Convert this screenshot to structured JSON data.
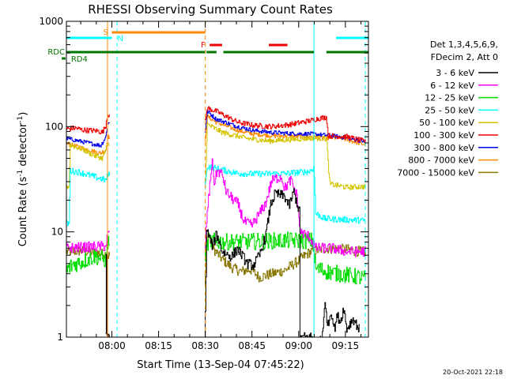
{
  "chart_data": {
    "type": "line",
    "title": "RHESSI Observing Summary Count Rates",
    "xlabel": "Start Time (13-Sep-04 07:45:22)",
    "ylabel": "Count Rate (s⁻¹ detector⁻¹)",
    "ylabel_main": "Count Rate (s",
    "ylabel_sup1": "-1",
    "ylabel_mid": " detector",
    "ylabel_sup2": "-1",
    "ylabel_end": ")",
    "yscale": "log",
    "ylim": [
      1,
      1000
    ],
    "xlim_minutes": [
      0,
      97
    ],
    "x_ticks": [
      {
        "label": "08:00",
        "minutes": 14.6
      },
      {
        "label": "08:15",
        "minutes": 29.6
      },
      {
        "label": "08:30",
        "minutes": 44.6
      },
      {
        "label": "08:45",
        "minutes": 59.6
      },
      {
        "label": "09:00",
        "minutes": 74.6
      },
      {
        "label": "09:15",
        "minutes": 89.6
      }
    ],
    "y_ticks": [
      {
        "label": "1",
        "value": 1
      },
      {
        "label": "10",
        "value": 10
      },
      {
        "label": "100",
        "value": 100
      },
      {
        "label": "1000",
        "value": 1000
      }
    ],
    "legend": {
      "header1": "Det 1,3,4,5,6,9,",
      "header2": "FDecim 2, Att 0",
      "entries": [
        {
          "label": "3 - 6 keV",
          "color": "#000000"
        },
        {
          "label": "6 - 12 keV",
          "color": "#ff00ff"
        },
        {
          "label": "12 - 25 keV",
          "color": "#00dd00"
        },
        {
          "label": "25 - 50 keV",
          "color": "#00ffff"
        },
        {
          "label": "50 - 100 keV",
          "color": "#d4c400"
        },
        {
          "label": "100 - 300 keV",
          "color": "#ee0000"
        },
        {
          "label": "300 - 800 keV",
          "color": "#0000ee"
        },
        {
          "label": "800 - 7000 keV",
          "color": "#ff8800"
        },
        {
          "label": "7000 - 15000 keV",
          "color": "#887700"
        }
      ]
    },
    "flags": {
      "S": {
        "label": "S",
        "color": "#ff8800",
        "segments": [
          [
            14.6,
            44.6
          ]
        ]
      },
      "N": {
        "label": "N",
        "color": "#00ffff",
        "segments": [
          [
            0,
            14.6
          ],
          [
            86.6,
            97
          ]
        ]
      },
      "F": {
        "label": "F",
        "color": "#ee0000",
        "segments": [
          [
            46,
            50
          ],
          [
            65,
            71
          ]
        ]
      },
      "RDC": {
        "label": "RDC",
        "color": "#007700",
        "segments": [
          [
            0,
            44.5
          ],
          [
            45,
            48.2
          ],
          [
            50.4,
            79.5
          ],
          [
            83.5,
            97
          ]
        ]
      },
      "RD4": {
        "label": "RD4",
        "color": "#007700",
        "segments": [
          [
            -1.5,
            -0.3
          ]
        ]
      }
    },
    "event_lines": [
      {
        "minutes": 13.2,
        "color": "#ff8800",
        "style": "solid"
      },
      {
        "minutes": 16.3,
        "color": "#00ffff",
        "style": "dashed"
      },
      {
        "minutes": 44.6,
        "color": "#ff8800",
        "style": "dashed"
      },
      {
        "minutes": 79.5,
        "color": "#00ffff",
        "style": "solid"
      },
      {
        "minutes": 96.0,
        "color": "#00ffff",
        "style": "dashed"
      }
    ],
    "series": [
      {
        "name": "3 - 6 keV",
        "color": "#000000",
        "noise": 0.05,
        "gaps": [
          [
            13.8,
            44.4
          ],
          [
            79.2,
            81.4
          ]
        ],
        "points": [
          [
            12.6,
            1
          ],
          [
            12.8,
            6
          ],
          [
            13.0,
            1
          ],
          [
            44.5,
            1
          ],
          [
            45.0,
            10.5
          ],
          [
            47,
            7.2
          ],
          [
            48.2,
            9.6
          ],
          [
            50,
            6.5
          ],
          [
            53,
            5.8
          ],
          [
            55,
            6.9
          ],
          [
            58,
            5.0
          ],
          [
            60,
            4.8
          ],
          [
            62,
            6.0
          ],
          [
            64,
            9.3
          ],
          [
            65.5,
            18
          ],
          [
            67,
            23
          ],
          [
            70,
            21.8
          ],
          [
            71.5,
            17.7
          ],
          [
            73,
            24
          ],
          [
            74.8,
            15.5
          ],
          [
            75,
            1
          ],
          [
            82,
            1
          ],
          [
            83,
            2
          ],
          [
            84,
            1.3
          ],
          [
            85,
            1.8
          ],
          [
            86,
            1.2
          ],
          [
            87,
            1.6
          ],
          [
            88,
            1.4
          ],
          [
            89,
            1.9
          ],
          [
            90,
            1.2
          ],
          [
            92,
            1.5
          ],
          [
            94,
            1.2
          ]
        ]
      },
      {
        "name": "6 - 12 keV",
        "color": "#ff00ff",
        "noise": 0.05,
        "gaps": [
          [
            13.8,
            44.4
          ]
        ],
        "points": [
          [
            0,
            7.0
          ],
          [
            12.0,
            7.3
          ],
          [
            12.6,
            7.3
          ],
          [
            13.2,
            9.5
          ],
          [
            44.5,
            7
          ],
          [
            45,
            13
          ],
          [
            46.7,
            47
          ],
          [
            47.5,
            28.5
          ],
          [
            48.3,
            38
          ],
          [
            50,
            35
          ],
          [
            51.3,
            24
          ],
          [
            53,
            21
          ],
          [
            55,
            18.5
          ],
          [
            57,
            12.5
          ],
          [
            59.5,
            11.5
          ],
          [
            62,
            15
          ],
          [
            64,
            18.8
          ],
          [
            65.8,
            30.2
          ],
          [
            67,
            32
          ],
          [
            69,
            33.5
          ],
          [
            70,
            25.8
          ],
          [
            72,
            31
          ],
          [
            74,
            22
          ],
          [
            75,
            10
          ],
          [
            78,
            9
          ],
          [
            80,
            7
          ],
          [
            85,
            7
          ],
          [
            90,
            6.5
          ],
          [
            96,
            6.5
          ]
        ]
      },
      {
        "name": "12 - 25 keV",
        "color": "#00dd00",
        "noise": 0.08,
        "gaps": [
          [
            13.8,
            44.4
          ]
        ],
        "points": [
          [
            0,
            4.3
          ],
          [
            2,
            4.9
          ],
          [
            5,
            5.2
          ],
          [
            9,
            5.9
          ],
          [
            12.6,
            5.4
          ],
          [
            13.2,
            8
          ],
          [
            44.5,
            6
          ],
          [
            45.5,
            8.2
          ],
          [
            50,
            8.0
          ],
          [
            60,
            8.1
          ],
          [
            70,
            8.3
          ],
          [
            79,
            8.2
          ],
          [
            80,
            4.5
          ],
          [
            85,
            4.1
          ],
          [
            90,
            3.9
          ],
          [
            96,
            3.6
          ]
        ]
      },
      {
        "name": "25 - 50 keV",
        "color": "#00ffff",
        "noise": 0.03,
        "gaps": [
          [
            13.8,
            44.4
          ]
        ],
        "points": [
          [
            0,
            12
          ],
          [
            0.8,
            12
          ],
          [
            1.2,
            38
          ],
          [
            4,
            37
          ],
          [
            8,
            34
          ],
          [
            11,
            32
          ],
          [
            12.6,
            31
          ],
          [
            13.2,
            35
          ],
          [
            44.5,
            27.5
          ],
          [
            45.2,
            42
          ],
          [
            48,
            40
          ],
          [
            55,
            36
          ],
          [
            62,
            35.5
          ],
          [
            70,
            35.8
          ],
          [
            78,
            37.5
          ],
          [
            79.5,
            40.8
          ],
          [
            80,
            15
          ],
          [
            83,
            13.3
          ],
          [
            96,
            12.8
          ]
        ]
      },
      {
        "name": "50 - 100 keV",
        "color": "#d4c400",
        "noise": 0.025,
        "gaps": [
          [
            13.8,
            44.4
          ]
        ],
        "points": [
          [
            0,
            27
          ],
          [
            0.8,
            27
          ],
          [
            1.2,
            67
          ],
          [
            5,
            61
          ],
          [
            9,
            53
          ],
          [
            11.5,
            50
          ],
          [
            12.6,
            60
          ],
          [
            13.2,
            68
          ],
          [
            44.5,
            27
          ],
          [
            45.2,
            105
          ],
          [
            50,
            88
          ],
          [
            58,
            77
          ],
          [
            65,
            73
          ],
          [
            72,
            75.5
          ],
          [
            79,
            78
          ],
          [
            83.5,
            77
          ],
          [
            84.5,
            28.5
          ],
          [
            90,
            26.5
          ],
          [
            96,
            27
          ]
        ]
      },
      {
        "name": "100 - 300 keV",
        "color": "#ee0000",
        "noise": 0.025,
        "gaps": [
          [
            13.8,
            44.4
          ]
        ],
        "points": [
          [
            0,
            95
          ],
          [
            3,
            97
          ],
          [
            5,
            93
          ],
          [
            7.5,
            92
          ],
          [
            10,
            91
          ],
          [
            11.5,
            88
          ],
          [
            12.6,
            102
          ],
          [
            13.1,
            130
          ],
          [
            44.5,
            110
          ],
          [
            45.2,
            150
          ],
          [
            48,
            140
          ],
          [
            55,
            110
          ],
          [
            60,
            103
          ],
          [
            66,
            100
          ],
          [
            72,
            105
          ],
          [
            79,
            115
          ],
          [
            80,
            118
          ],
          [
            83.5,
            123
          ],
          [
            84,
            82
          ],
          [
            90,
            80
          ],
          [
            96,
            72
          ]
        ]
      },
      {
        "name": "300 - 800 keV",
        "color": "#0000ee",
        "noise": 0.02,
        "gaps": [
          [
            13.8,
            44.4
          ]
        ],
        "points": [
          [
            0,
            77
          ],
          [
            4,
            73
          ],
          [
            8,
            69
          ],
          [
            11,
            66
          ],
          [
            12.6,
            80
          ],
          [
            13.2,
            108
          ],
          [
            44.5,
            90
          ],
          [
            45.2,
            140
          ],
          [
            48,
            118
          ],
          [
            55,
            100
          ],
          [
            60,
            92
          ],
          [
            66,
            88
          ],
          [
            72,
            86
          ],
          [
            79,
            85
          ],
          [
            83,
            83
          ],
          [
            88,
            80
          ],
          [
            96,
            72
          ]
        ]
      },
      {
        "name": "800 - 7000 keV",
        "color": "#ff8800",
        "noise": 0.02,
        "gaps": [
          [
            13.8,
            44.4
          ]
        ],
        "points": [
          [
            0,
            69
          ],
          [
            4,
            64
          ],
          [
            8,
            59
          ],
          [
            11,
            56
          ],
          [
            12.6,
            60
          ],
          [
            13.2,
            80
          ],
          [
            44.5,
            70
          ],
          [
            45.2,
            125
          ],
          [
            48,
            110
          ],
          [
            55,
            92
          ],
          [
            60,
            85
          ],
          [
            66,
            82
          ],
          [
            72,
            81
          ],
          [
            79,
            80
          ],
          [
            83,
            78
          ],
          [
            88,
            78
          ],
          [
            96,
            67
          ]
        ]
      },
      {
        "name": "7000 - 15000 keV",
        "color": "#887700",
        "noise": 0.05,
        "gaps": [
          [
            13.8,
            44.4
          ]
        ],
        "points": [
          [
            0,
            6.5
          ],
          [
            5,
            6.6
          ],
          [
            10,
            6.3
          ],
          [
            12.6,
            6.1
          ],
          [
            13.2,
            6
          ],
          [
            44.5,
            3.2
          ],
          [
            45.2,
            10
          ],
          [
            47,
            7
          ],
          [
            50,
            5.5
          ],
          [
            53,
            4.6
          ],
          [
            56,
            4.2
          ],
          [
            59,
            4.4
          ],
          [
            62,
            3.7
          ],
          [
            66,
            4.0
          ],
          [
            70,
            4.3
          ],
          [
            74,
            5.2
          ],
          [
            78,
            6.4
          ],
          [
            83,
            7.0
          ],
          [
            90,
            6.8
          ],
          [
            96,
            6.4
          ]
        ]
      }
    ],
    "date_stamp": "20-Oct-2021 22:18"
  }
}
